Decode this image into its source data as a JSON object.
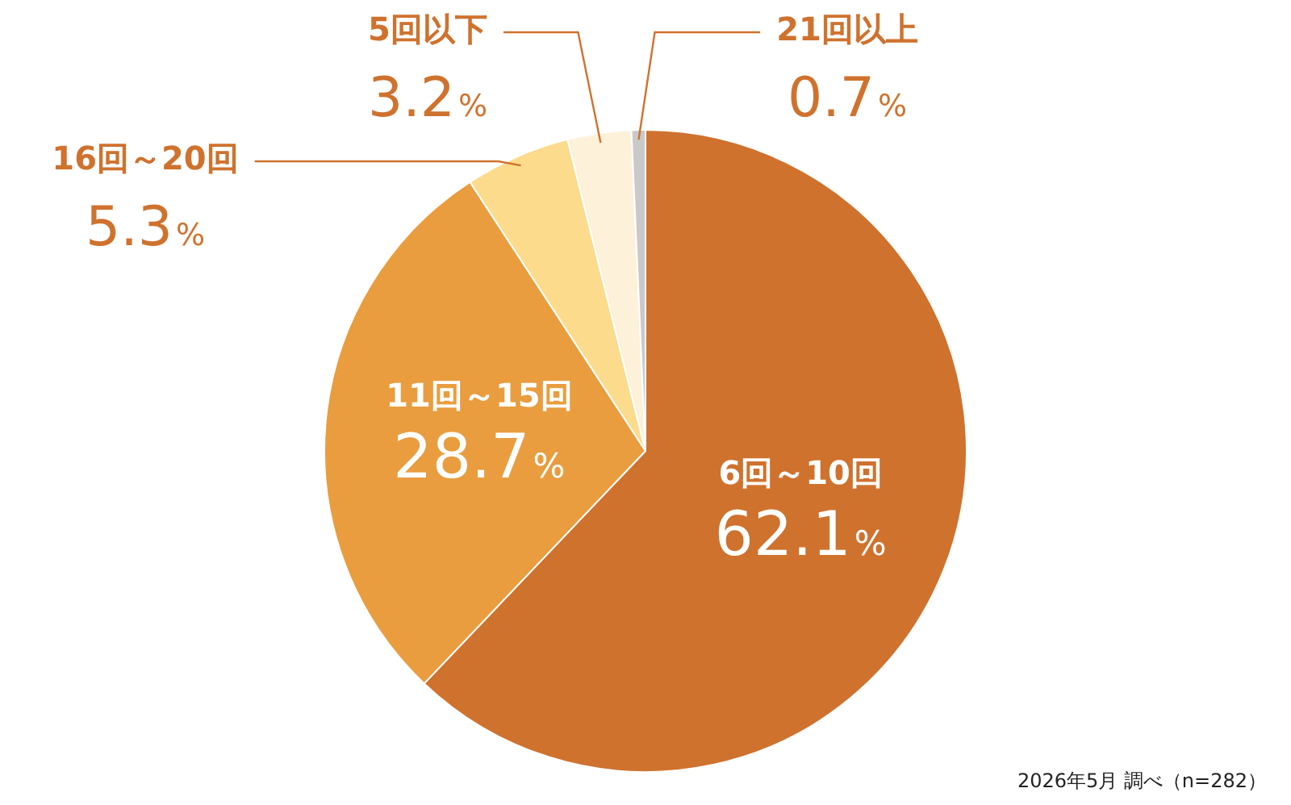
{
  "chart_data": {
    "type": "pie",
    "categories": [
      "6回～10回",
      "11回～15回",
      "16回～20回",
      "5回以下",
      "21回以上"
    ],
    "values": [
      62.1,
      28.7,
      5.3,
      3.2,
      0.7
    ],
    "colors": [
      "#cf722e",
      "#e99d3f",
      "#fcdb8c",
      "#fdf1da",
      "#c9c9c9"
    ],
    "value_labels": [
      "62.1%",
      "28.7%",
      "5.3%",
      "3.2%",
      "0.7%"
    ],
    "legend": false,
    "annotations": [
      "2026年5月 調べ（n=282）"
    ]
  }
}
